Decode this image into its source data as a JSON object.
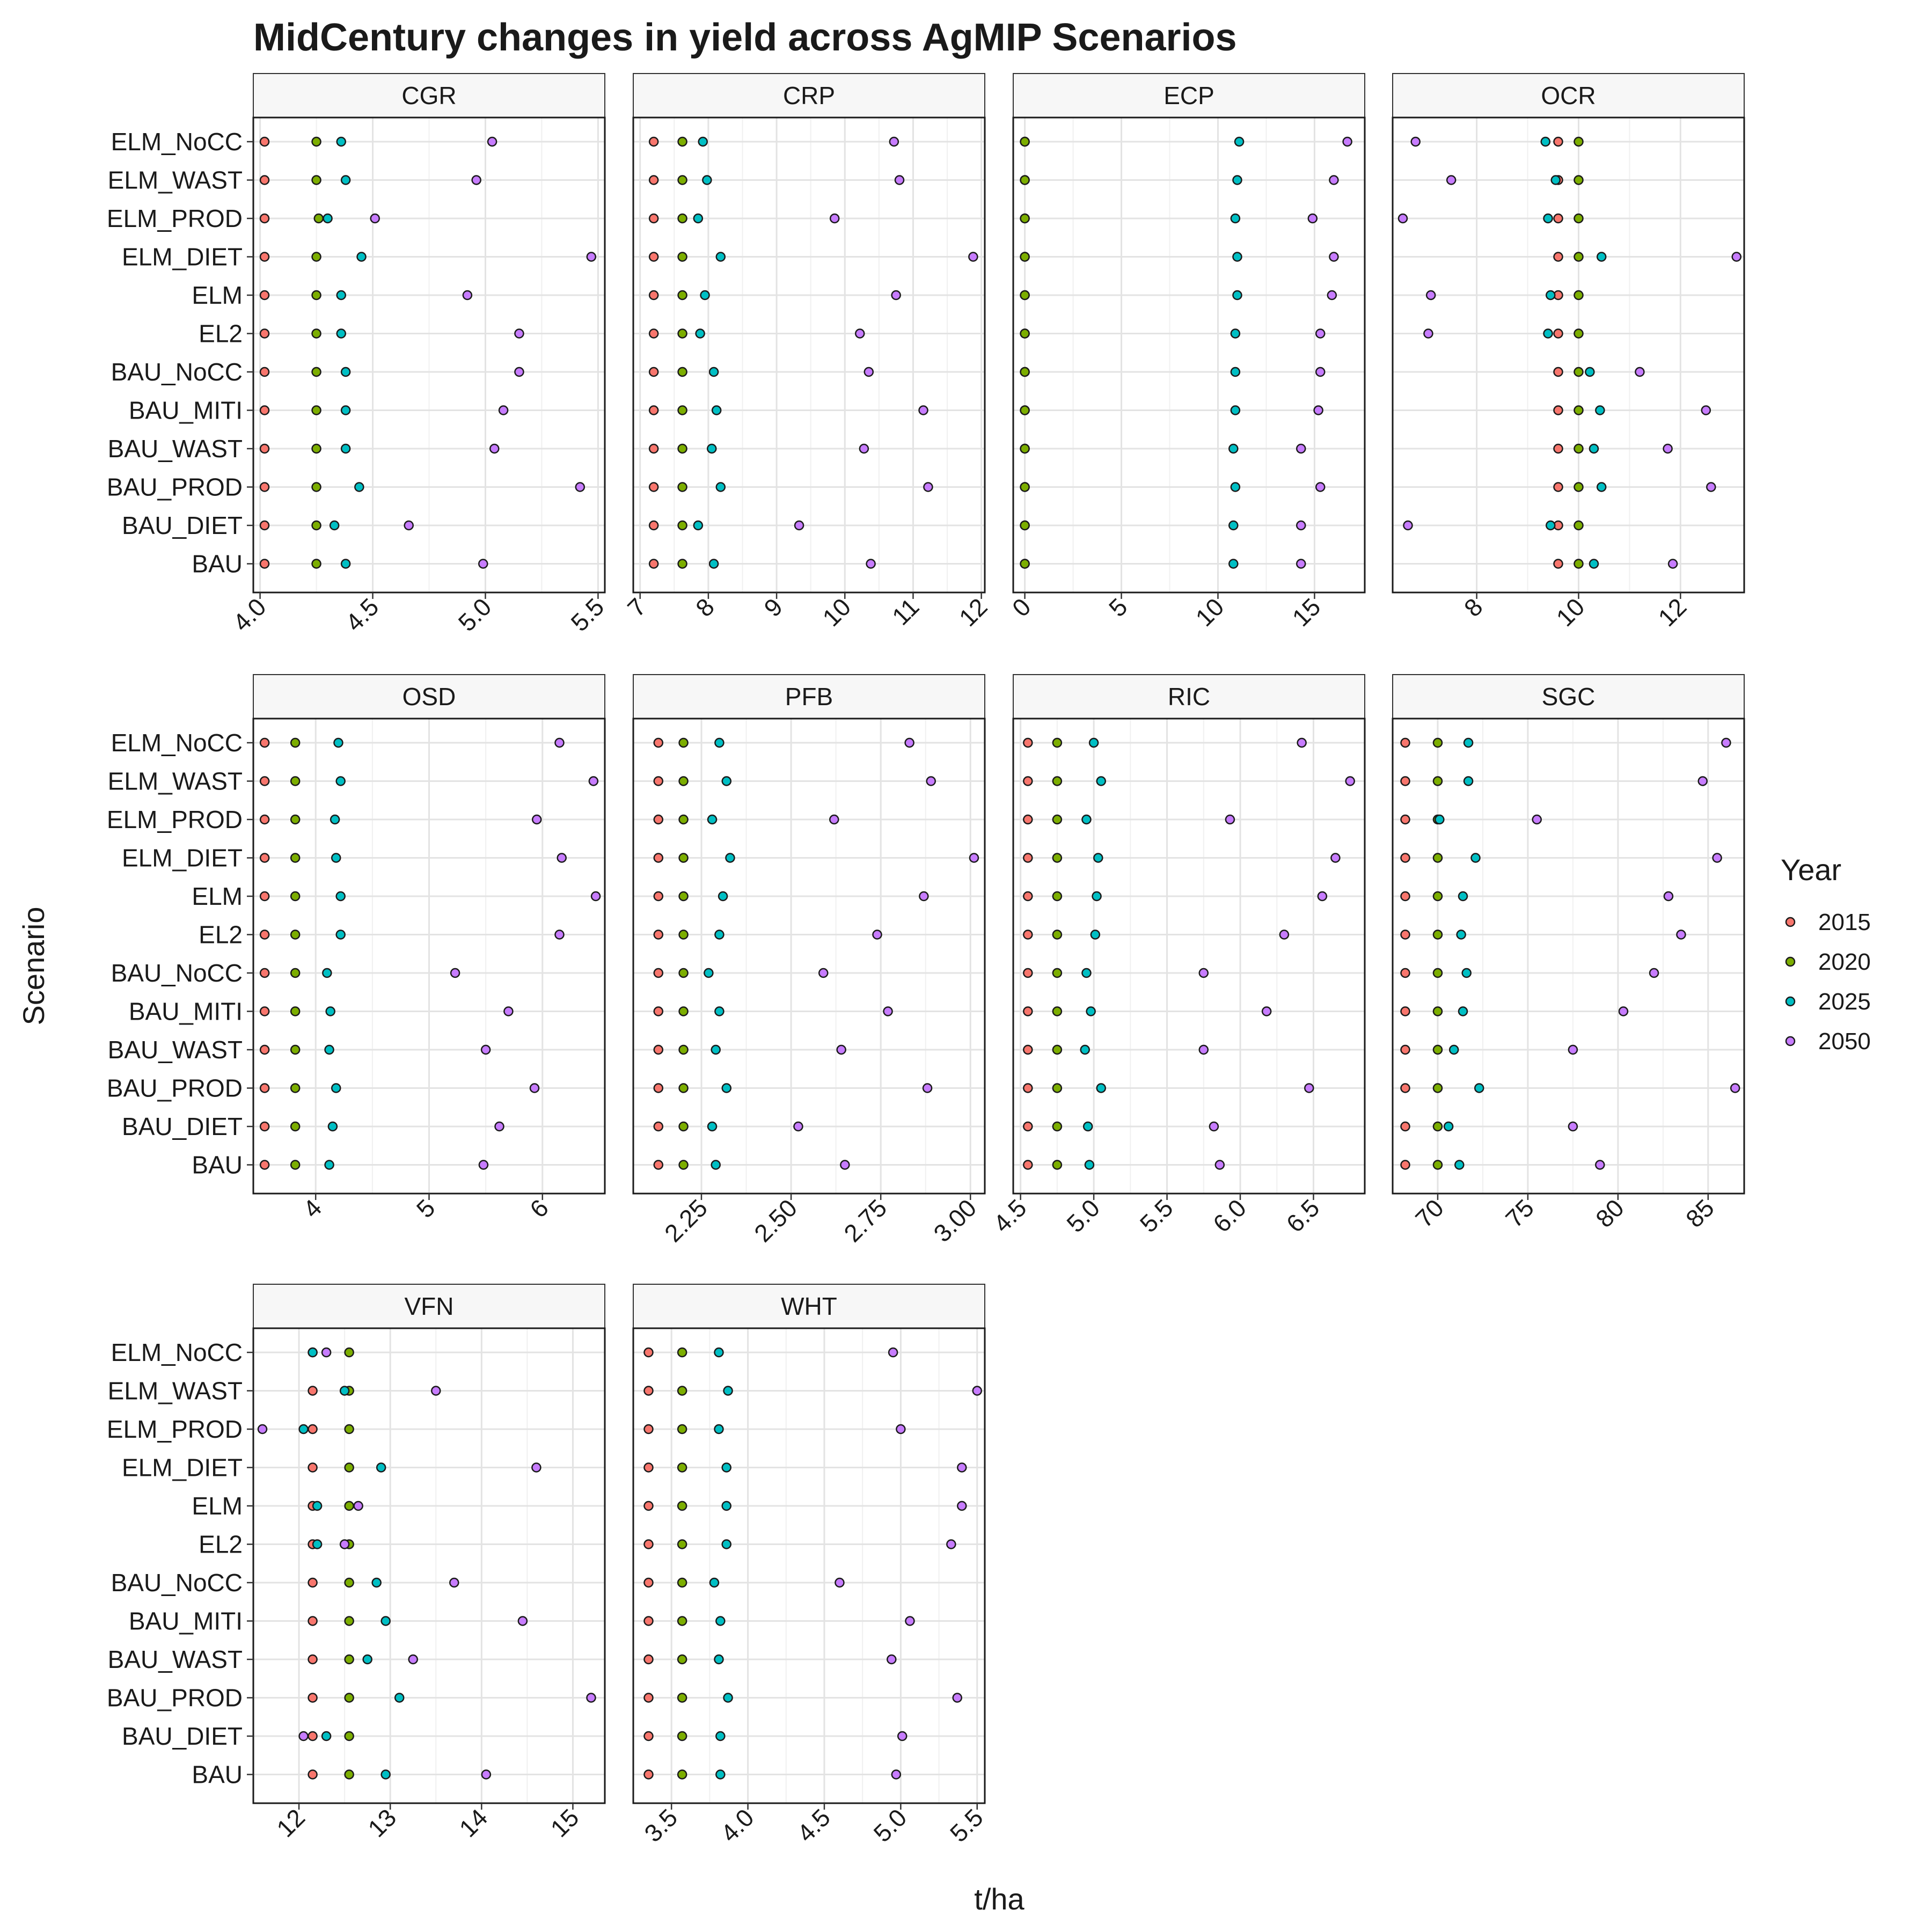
{
  "chart_data": {
    "type": "scatter",
    "title": "MidCentury changes in yield across AgMIP Scenarios",
    "xlabel": "t/ha",
    "ylabel": "Scenario",
    "grid": true,
    "legend": {
      "title": "Year",
      "placement": "right",
      "entries": [
        {
          "label": "2015",
          "color": "#F8766D"
        },
        {
          "label": "2020",
          "color": "#7CAE00"
        },
        {
          "label": "2025",
          "color": "#00BFC4"
        },
        {
          "label": "2050",
          "color": "#C77CFF"
        }
      ]
    },
    "categories": [
      "BAU",
      "BAU_DIET",
      "BAU_PROD",
      "BAU_WAST",
      "BAU_MITI",
      "BAU_NoCC",
      "EL2",
      "ELM",
      "ELM_DIET",
      "ELM_PROD",
      "ELM_WAST",
      "ELM_NoCC"
    ],
    "series_names": [
      "2015",
      "2020",
      "2025",
      "2050"
    ],
    "panels": [
      {
        "name": "CGR",
        "xlim": [
          3.97,
          5.53
        ],
        "ticks": [
          4.0,
          4.5,
          5.0,
          5.5
        ],
        "tick_labels": [
          "4.0",
          "4.5",
          "5.0",
          "5.5"
        ],
        "values": {
          "2015": [
            4.02,
            4.02,
            4.02,
            4.02,
            4.02,
            4.02,
            4.02,
            4.02,
            4.02,
            4.02,
            4.02,
            4.02
          ],
          "2020": [
            4.25,
            4.25,
            4.25,
            4.25,
            4.25,
            4.25,
            4.25,
            4.25,
            4.25,
            4.26,
            4.25,
            4.25
          ],
          "2025": [
            4.38,
            4.33,
            4.44,
            4.38,
            4.38,
            4.38,
            4.36,
            4.36,
            4.45,
            4.3,
            4.38,
            4.36
          ],
          "2050": [
            4.99,
            4.66,
            5.42,
            5.04,
            5.08,
            5.15,
            5.15,
            4.92,
            5.47,
            4.51,
            4.96,
            5.03
          ]
        }
      },
      {
        "name": "CRP",
        "xlim": [
          6.9,
          12.05
        ],
        "ticks": [
          7,
          8,
          9,
          10,
          11,
          12
        ],
        "tick_labels": [
          "7",
          "8",
          "9",
          "10",
          "11",
          "12"
        ],
        "values": {
          "2015": [
            7.2,
            7.2,
            7.2,
            7.2,
            7.2,
            7.2,
            7.2,
            7.2,
            7.2,
            7.2,
            7.2,
            7.2
          ],
          "2020": [
            7.62,
            7.62,
            7.62,
            7.62,
            7.62,
            7.62,
            7.62,
            7.62,
            7.62,
            7.62,
            7.62,
            7.62
          ],
          "2025": [
            8.08,
            7.85,
            8.18,
            8.05,
            8.12,
            8.08,
            7.88,
            7.95,
            8.18,
            7.85,
            7.98,
            7.92
          ],
          "2050": [
            10.38,
            9.33,
            11.22,
            10.28,
            11.15,
            10.35,
            10.22,
            10.75,
            11.88,
            9.85,
            10.8,
            10.72
          ]
        }
      },
      {
        "name": "ECP",
        "xlim": [
          -0.6,
          17.6
        ],
        "ticks": [
          0,
          5,
          10,
          15
        ],
        "tick_labels": [
          "0",
          "5",
          "10",
          "15"
        ],
        "values": {
          "2015": [
            0,
            0,
            0,
            0,
            0,
            0,
            0,
            0,
            0,
            0,
            0,
            0
          ],
          "2020": [
            0,
            0,
            0,
            0,
            0,
            0,
            0,
            0,
            0,
            0,
            0,
            0
          ],
          "2025": [
            10.8,
            10.8,
            10.9,
            10.8,
            10.9,
            10.9,
            10.9,
            11.0,
            11.0,
            10.9,
            11.0,
            11.1
          ],
          "2050": [
            14.3,
            14.3,
            15.3,
            14.3,
            15.2,
            15.3,
            15.3,
            15.9,
            16.0,
            14.9,
            16.0,
            16.7
          ]
        }
      },
      {
        "name": "OCR",
        "xlim": [
          6.35,
          13.25
        ],
        "ticks": [
          8,
          10,
          12
        ],
        "tick_labels": [
          "8",
          "10",
          "12"
        ],
        "values": {
          "2015": [
            9.6,
            9.6,
            9.6,
            9.6,
            9.6,
            9.6,
            9.6,
            9.6,
            9.6,
            9.6,
            9.6,
            9.6
          ],
          "2020": [
            10.0,
            10.0,
            10.0,
            10.0,
            10.0,
            10.0,
            10.0,
            10.0,
            10.0,
            10.0,
            10.0,
            10.0
          ],
          "2025": [
            10.3,
            9.45,
            10.45,
            10.3,
            10.42,
            10.22,
            9.4,
            9.45,
            10.45,
            9.4,
            9.55,
            9.35
          ],
          "2050": [
            11.85,
            6.65,
            12.6,
            11.75,
            12.5,
            11.2,
            7.05,
            7.1,
            13.1,
            6.55,
            7.5,
            6.8
          ]
        }
      },
      {
        "name": "OSD",
        "xlim": [
          3.45,
          6.55
        ],
        "ticks": [
          4,
          5,
          6
        ],
        "tick_labels": [
          "4",
          "5",
          "6"
        ],
        "values": {
          "2015": [
            3.55,
            3.55,
            3.55,
            3.55,
            3.55,
            3.55,
            3.55,
            3.55,
            3.55,
            3.55,
            3.55,
            3.55
          ],
          "2020": [
            3.82,
            3.82,
            3.82,
            3.82,
            3.82,
            3.82,
            3.82,
            3.82,
            3.82,
            3.82,
            3.82,
            3.82
          ],
          "2025": [
            4.12,
            4.15,
            4.18,
            4.12,
            4.13,
            4.1,
            4.22,
            4.22,
            4.18,
            4.17,
            4.22,
            4.2
          ],
          "2050": [
            5.48,
            5.62,
            5.93,
            5.5,
            5.7,
            5.23,
            6.15,
            6.47,
            6.17,
            5.95,
            6.45,
            6.15
          ]
        }
      },
      {
        "name": "PFB",
        "xlim": [
          2.06,
          3.04
        ],
        "ticks": [
          2.25,
          2.5,
          2.75,
          3.0
        ],
        "tick_labels": [
          "2.25",
          "2.50",
          "2.75",
          "3.00"
        ],
        "values": {
          "2015": [
            2.13,
            2.13,
            2.13,
            2.13,
            2.13,
            2.13,
            2.13,
            2.13,
            2.13,
            2.13,
            2.13,
            2.13
          ],
          "2020": [
            2.2,
            2.2,
            2.2,
            2.2,
            2.2,
            2.2,
            2.2,
            2.2,
            2.2,
            2.2,
            2.2,
            2.2
          ],
          "2025": [
            2.29,
            2.28,
            2.32,
            2.29,
            2.3,
            2.27,
            2.3,
            2.31,
            2.33,
            2.28,
            2.32,
            2.3
          ],
          "2050": [
            2.65,
            2.52,
            2.88,
            2.64,
            2.77,
            2.59,
            2.74,
            2.87,
            3.01,
            2.62,
            2.89,
            2.83
          ]
        }
      },
      {
        "name": "RIC",
        "xlim": [
          4.45,
          6.85
        ],
        "ticks": [
          4.5,
          5.0,
          5.5,
          6.0,
          6.5
        ],
        "tick_labels": [
          "4.5",
          "5.0",
          "5.5",
          "6.0",
          "6.5"
        ],
        "values": {
          "2015": [
            4.55,
            4.55,
            4.55,
            4.55,
            4.55,
            4.55,
            4.55,
            4.55,
            4.55,
            4.55,
            4.55,
            4.55
          ],
          "2020": [
            4.75,
            4.75,
            4.75,
            4.75,
            4.75,
            4.75,
            4.75,
            4.75,
            4.75,
            4.75,
            4.75,
            4.75
          ],
          "2025": [
            4.97,
            4.96,
            5.05,
            4.94,
            4.98,
            4.95,
            5.01,
            5.02,
            5.03,
            4.95,
            5.05,
            5.0
          ],
          "2050": [
            5.86,
            5.82,
            6.47,
            5.75,
            6.18,
            5.75,
            6.3,
            6.56,
            6.65,
            5.93,
            6.75,
            6.42
          ]
        }
      },
      {
        "name": "SGC",
        "xlim": [
          67.5,
          87.0
        ],
        "ticks": [
          70,
          75,
          80,
          85
        ],
        "tick_labels": [
          "70",
          "75",
          "80",
          "85"
        ],
        "values": {
          "2015": [
            68.2,
            68.2,
            68.2,
            68.2,
            68.2,
            68.2,
            68.2,
            68.2,
            68.2,
            68.2,
            68.2,
            68.2
          ],
          "2020": [
            70.0,
            70.0,
            70.0,
            70.0,
            70.0,
            70.0,
            70.0,
            70.0,
            70.0,
            70.0,
            70.0,
            70.0
          ],
          "2025": [
            71.2,
            70.6,
            72.3,
            70.9,
            71.4,
            71.6,
            71.3,
            71.4,
            72.1,
            70.1,
            71.7,
            71.7
          ],
          "2050": [
            79.0,
            77.5,
            86.5,
            77.5,
            80.3,
            82.0,
            83.5,
            82.8,
            85.5,
            75.5,
            84.7,
            86.0
          ]
        }
      },
      {
        "name": "VFN",
        "xlim": [
          11.5,
          15.35
        ],
        "ticks": [
          12,
          13,
          14,
          15
        ],
        "tick_labels": [
          "12",
          "13",
          "14",
          "15"
        ],
        "values": {
          "2015": [
            12.15,
            12.15,
            12.15,
            12.15,
            12.15,
            12.15,
            12.15,
            12.15,
            12.15,
            12.15,
            12.15,
            12.15
          ],
          "2020": [
            12.55,
            12.55,
            12.55,
            12.55,
            12.55,
            12.55,
            12.55,
            12.55,
            12.55,
            12.55,
            12.55,
            12.55
          ],
          "2025": [
            12.95,
            12.3,
            13.1,
            12.75,
            12.95,
            12.85,
            12.2,
            12.2,
            12.9,
            12.05,
            12.5,
            12.15
          ],
          "2050": [
            14.05,
            12.05,
            15.2,
            13.25,
            14.45,
            13.7,
            12.5,
            12.65,
            14.6,
            11.6,
            13.5,
            12.3
          ]
        }
      },
      {
        "name": "WHT",
        "xlim": [
          3.25,
          5.55
        ],
        "ticks": [
          3.5,
          4.0,
          4.5,
          5.0,
          5.5
        ],
        "tick_labels": [
          "3.5",
          "4.0",
          "4.5",
          "5.0",
          "5.5"
        ],
        "values": {
          "2015": [
            3.35,
            3.35,
            3.35,
            3.35,
            3.35,
            3.35,
            3.35,
            3.35,
            3.35,
            3.35,
            3.35,
            3.35
          ],
          "2020": [
            3.57,
            3.57,
            3.57,
            3.57,
            3.57,
            3.57,
            3.57,
            3.57,
            3.57,
            3.57,
            3.57,
            3.57
          ],
          "2025": [
            3.82,
            3.82,
            3.87,
            3.81,
            3.82,
            3.78,
            3.86,
            3.86,
            3.86,
            3.81,
            3.87,
            3.81
          ],
          "2050": [
            4.97,
            5.01,
            5.37,
            4.94,
            5.06,
            4.6,
            5.33,
            5.4,
            5.4,
            5.0,
            5.5,
            4.95
          ]
        }
      }
    ]
  }
}
